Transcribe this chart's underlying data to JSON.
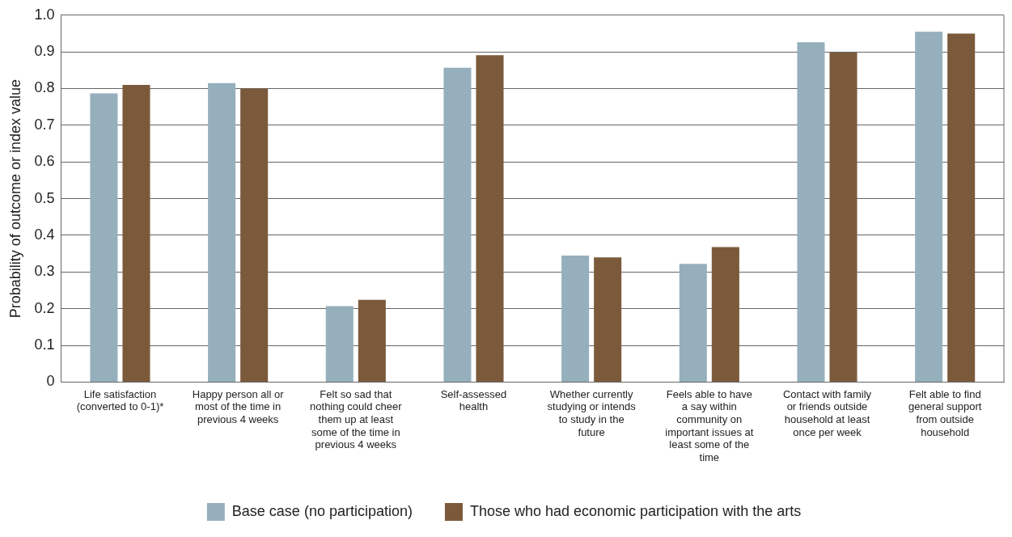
{
  "chart_data": {
    "type": "bar",
    "ylabel": "Probability of outcome or index value",
    "categories": [
      "Life satisfaction (converted to 0-1)*",
      "Happy person all or most of the time in previous 4 weeks",
      "Felt so sad that nothing could cheer them up at least some of the time in previous 4 weeks",
      "Self-assessed health",
      "Whether currently studying or intends to study in the future",
      "Feels able to have a say within community on important issues at least some of the time",
      "Contact with family or friends outside household at least once per week",
      "Felt able to find general support from outside household"
    ],
    "series": [
      {
        "name": "Base case (no participation)",
        "color": "#95b0bc",
        "values": [
          0.787,
          0.815,
          0.207,
          0.857,
          0.345,
          0.322,
          0.926,
          0.955
        ]
      },
      {
        "name": "Those who had economic participation with the arts",
        "color": "#7b5a3c",
        "values": [
          0.81,
          0.8,
          0.224,
          0.891,
          0.34,
          0.368,
          0.898,
          0.95
        ]
      }
    ],
    "ylim": [
      0,
      1
    ],
    "yticks": [
      0,
      0.1,
      0.2,
      0.3,
      0.4,
      0.5,
      0.6,
      0.7,
      0.8,
      0.9,
      {
        "value": 1,
        "label": "1.0"
      }
    ],
    "grid": "y",
    "legend": "bottom"
  }
}
